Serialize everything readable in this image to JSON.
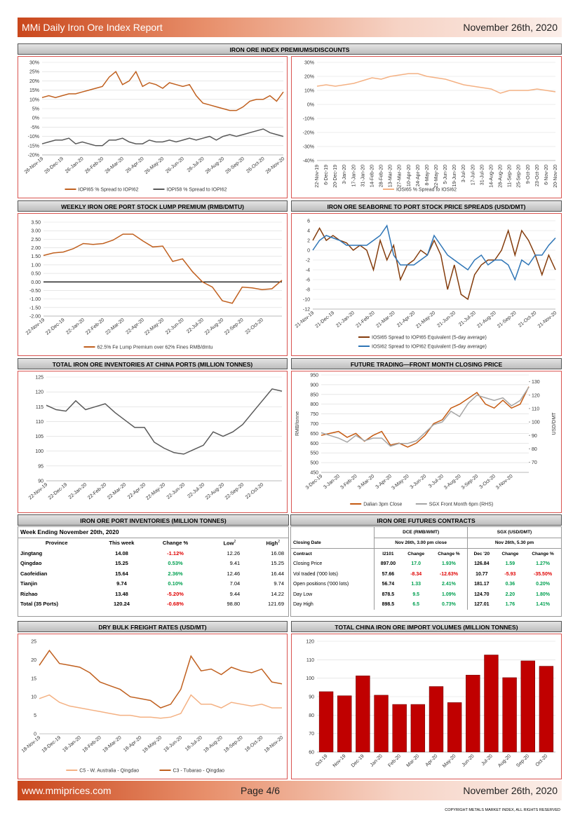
{
  "header": {
    "title": "MMi Daily Iron Ore Index Report",
    "date": "November 26th, 2020"
  },
  "footer": {
    "website": "www.mmiprices.com",
    "page": "Page 4/6",
    "date": "November 26th, 2020",
    "copyright": "COPYRIGHT METALS MARKET INDEX, ALL RIGHTS RESERVED"
  },
  "chart_data": [
    {
      "type": "line",
      "title": "IRON ORE INDEX PREMIUMS/DISCOUNTS",
      "grid": true,
      "legend": "bottom",
      "categories": [
        "26-Nov-19",
        null,
        null,
        "26-Dec-19",
        null,
        null,
        "26-Jan-20",
        null,
        null,
        "26-Feb-20",
        null,
        null,
        "26-Mar-20",
        null,
        null,
        "26-Apr-20",
        null,
        null,
        "26-May-20",
        null,
        null,
        "26-Jun-20",
        null,
        null,
        "26-Jul-20",
        null,
        null,
        "26-Aug-20",
        null,
        null,
        "26-Sep-20",
        null,
        null,
        "26-Oct-20",
        null,
        null,
        "26-Nov-20"
      ],
      "series": [
        {
          "name": "IOPI65 % Spread to IOPI62",
          "color": "#c0601f",
          "values": [
            11,
            12,
            11,
            12,
            13,
            13,
            14,
            15,
            16,
            17,
            22,
            25,
            18,
            20,
            25,
            17,
            19,
            18,
            16,
            19,
            18,
            17,
            18,
            12,
            8,
            7,
            6,
            5,
            4,
            4,
            6,
            9,
            10,
            10,
            12,
            9,
            14
          ]
        },
        {
          "name": "IOPI58 % Spread to IOPI62",
          "color": "#595959",
          "values": [
            -14,
            -13,
            -12,
            -12,
            -11,
            -14,
            -13,
            -14,
            -15,
            -15,
            -12,
            -12,
            -11,
            -13,
            -14,
            -14,
            -12,
            -13,
            -13,
            -12,
            -13,
            -12,
            -11,
            -12,
            -11,
            -10,
            -12,
            -10,
            -9,
            -10,
            -9,
            -8,
            -7,
            -6,
            -8,
            -9,
            -10
          ]
        }
      ],
      "ylim": [
        -20,
        30
      ],
      "yticks": [
        {
          "value": -20,
          "label": "-20%"
        },
        {
          "value": -15,
          "label": "-15%"
        },
        {
          "value": -10,
          "label": "-10%"
        },
        {
          "value": -5,
          "label": "-5%"
        },
        {
          "value": 0,
          "label": "0%"
        },
        {
          "value": 5,
          "label": "5%"
        },
        {
          "value": 10,
          "label": "10%"
        },
        {
          "value": 15,
          "label": "15%"
        },
        {
          "value": 20,
          "label": "20%"
        },
        {
          "value": 25,
          "label": "25%"
        },
        {
          "value": 30,
          "label": "30%"
        }
      ]
    },
    {
      "type": "line",
      "grid": true,
      "legend": "bottom",
      "categories": [
        "22-Nov-19",
        "6-Dec-19",
        "20-Dec-19",
        "3-Jan-20",
        "17-Jan-20",
        "31-Jan-20",
        "14-Feb-20",
        "28-Feb-20",
        "13-Mar-20",
        "27-Mar-20",
        "10-Apr-20",
        "24-Apr-20",
        "8-May-20",
        "22-May-20",
        "5-Jun-20",
        "19-Jun-20",
        "3-Jul-20",
        "17-Jul-20",
        "31-Jul-20",
        "14-Aug-20",
        "28-Aug-20",
        "11-Sep-20",
        "25-Sep-20",
        "9-Oct-20",
        "23-Oct-20",
        "6-Nov-20",
        "20-Nov-20"
      ],
      "series": [
        {
          "name": "IOSI65 % Spread to IOSI62",
          "color": "#f4b183",
          "values": [
            13,
            14,
            13,
            14,
            15,
            17,
            19,
            18,
            20,
            21,
            22,
            22,
            20,
            19,
            18,
            16,
            14,
            13,
            12,
            11,
            8,
            10,
            10,
            10,
            11,
            10,
            9
          ]
        }
      ],
      "ylim": [
        -40,
        30
      ],
      "yticks": [
        {
          "value": -40,
          "label": "-40%"
        },
        {
          "value": -30,
          "label": "-30%"
        },
        {
          "value": -20,
          "label": "-20%"
        },
        {
          "value": -10,
          "label": "-10%"
        },
        {
          "value": 0,
          "label": "0%"
        },
        {
          "value": 10,
          "label": "10%"
        },
        {
          "value": 20,
          "label": "20%"
        },
        {
          "value": 30,
          "label": "30%"
        }
      ]
    },
    {
      "type": "line",
      "title": "WEEKLY IRON ORE PORT STOCK LUMP PREMIUM (RMB/DMTU)",
      "grid": true,
      "zero_line": true,
      "legend": "bottom",
      "categories": [
        "22-Nov-19",
        null,
        "22-Dec-19",
        null,
        "22-Jan-20",
        null,
        "22-Feb-20",
        null,
        "22-Mar-20",
        null,
        "22-Apr-20",
        null,
        "22-May-20",
        null,
        "22-Jun-20",
        null,
        "22-Jul-20",
        null,
        "22-Aug-20",
        null,
        "22-Sep-20",
        null,
        "22-Oct-20",
        null,
        null
      ],
      "series": [
        {
          "name": "62.5% Fe Lump Premium over 62% Fines RMB/dmtu",
          "color": "#c0601f",
          "values": [
            1.55,
            1.7,
            1.75,
            1.95,
            2.25,
            2.2,
            2.25,
            2.45,
            2.8,
            2.8,
            2.4,
            2.05,
            2.1,
            1.2,
            1.35,
            0.6,
            0.0,
            -0.3,
            -1.1,
            -1.25,
            -0.3,
            -0.35,
            -0.45,
            -0.4,
            0.1
          ]
        }
      ],
      "ylim": [
        -2,
        3.5
      ],
      "yticks": [
        {
          "value": -2,
          "label": "-2.00"
        },
        {
          "value": -1.5,
          "label": "-1.50"
        },
        {
          "value": -1,
          "label": "-1.00"
        },
        {
          "value": -0.5,
          "label": "-0.50"
        },
        {
          "value": 0,
          "label": "0.00"
        },
        {
          "value": 0.5,
          "label": "0.50"
        },
        {
          "value": 1,
          "label": "1.00"
        },
        {
          "value": 1.5,
          "label": "1.50"
        },
        {
          "value": 2,
          "label": "2.00"
        },
        {
          "value": 2.5,
          "label": "2.50"
        },
        {
          "value": 3,
          "label": "3.00"
        },
        {
          "value": 3.5,
          "label": "3.50"
        }
      ]
    },
    {
      "type": "line",
      "title": "IRON ORE SEABORNE TO PORT STOCK PRICE SPREADS (USD/DMT)",
      "grid": true,
      "legend": "bottom",
      "categories": [
        "21-Nov-19",
        null,
        null,
        "21-Dec-19",
        null,
        null,
        "21-Jan-20",
        null,
        null,
        "21-Feb-20",
        null,
        null,
        "21-Mar-20",
        null,
        null,
        "21-Apr-20",
        null,
        null,
        "21-May-20",
        null,
        null,
        "21-Jun-20",
        null,
        null,
        "21-Jul-20",
        null,
        null,
        "21-Aug-20",
        null,
        null,
        "21-Sep-20",
        null,
        null,
        "21-Oct-20",
        null,
        null,
        "21-Nov-20"
      ],
      "series": [
        {
          "name": "IOSI65 Spread to IOPI65 Equivalent (5-day average)",
          "color": "#843c0c",
          "values": [
            2,
            4.5,
            2,
            3,
            2,
            1.5,
            0,
            1,
            0,
            -4,
            2,
            -2,
            1,
            -6,
            -3,
            -2,
            0,
            -1,
            2,
            -1,
            -8,
            -3,
            -9,
            -10,
            -5,
            -3,
            -2,
            -2,
            0,
            4,
            -1,
            4,
            2,
            -1,
            -5,
            -1,
            -4
          ]
        },
        {
          "name": "IOSI62 Spread to IOPI62 Equivalent (5-day average)",
          "color": "#2e75b6",
          "values": [
            0,
            2,
            3,
            2.5,
            2,
            1,
            1,
            1,
            1,
            2,
            3,
            5,
            -1,
            -3,
            -3,
            -3,
            -2,
            -1,
            3,
            1,
            -1,
            -2,
            -3,
            -4,
            -2,
            -1,
            -3,
            -2,
            -2,
            -3,
            -6,
            -2,
            -3,
            -1,
            -1,
            1,
            2.5
          ]
        }
      ],
      "ylim": [
        -12,
        6
      ],
      "yticks": [
        -12,
        -10,
        -8,
        -6,
        -4,
        -2,
        0,
        2,
        4,
        6
      ]
    },
    {
      "type": "line",
      "title": "TOTAL IRON ORE INVENTORIES AT CHINA PORTS (MILLION TONNES)",
      "grid": true,
      "categories": [
        "22-Nov-19",
        null,
        "22-Dec-19",
        null,
        "22-Jan-20",
        null,
        "22-Feb-20",
        null,
        "22-Mar-20",
        null,
        "22-Apr-20",
        null,
        "22-May-20",
        null,
        "22-Jun-20",
        null,
        "22-Jul-20",
        null,
        "22-Aug-20",
        null,
        "22-Sep-20",
        null,
        "22-Oct-20",
        null,
        null
      ],
      "series": [
        {
          "color": "#595959",
          "values": [
            115.5,
            114,
            113.5,
            117,
            114,
            115,
            116,
            113,
            110.5,
            108,
            108,
            103,
            101,
            99.5,
            99,
            100.5,
            102,
            106.5,
            105,
            106.5,
            109,
            113,
            117,
            121,
            120.24
          ]
        }
      ],
      "ylim": [
        90,
        125
      ],
      "yticks": [
        90,
        95,
        100,
        105,
        110,
        115,
        120,
        125
      ]
    },
    {
      "type": "line",
      "title": "FUTURE TRADING—FRONT MONTH CLOSING PRICE",
      "grid": true,
      "legend": "bottom",
      "ylabel": "RMB/tonne",
      "y2label": "USD/DMT",
      "categories": [
        "3-Dec-19",
        null,
        "3-Jan-20",
        null,
        "3-Feb-20",
        null,
        "3-Mar-20",
        null,
        "3-Apr-20",
        null,
        "3-May-20",
        null,
        "3-Jun-20",
        null,
        "3-Jul-20",
        null,
        "3-Aug-20",
        null,
        "3-Sep-20",
        null,
        "3-Oct-20",
        null,
        "3-Nov-20",
        null,
        null
      ],
      "series": [
        {
          "name": "Dalian 3pm Close",
          "color": "#c55a11",
          "values": [
            640,
            650,
            660,
            630,
            650,
            610,
            640,
            660,
            590,
            600,
            580,
            600,
            640,
            700,
            720,
            780,
            800,
            830,
            860,
            800,
            780,
            820,
            780,
            800,
            890
          ]
        },
        {
          "name": "SGX Front Month 6pm (RHS)",
          "color": "#a6a6a6",
          "axis": "y2",
          "values": [
            92,
            90,
            88,
            85,
            90,
            86,
            88,
            88,
            82,
            84,
            84,
            86,
            92,
            98,
            100,
            108,
            104,
            114,
            120,
            118,
            116,
            118,
            112,
            116,
            126
          ]
        }
      ],
      "ylim": [
        450,
        950
      ],
      "yticks": [
        450,
        500,
        550,
        600,
        650,
        700,
        750,
        800,
        850,
        900,
        950
      ],
      "y2lim": [
        62.5,
        135
      ],
      "y2ticks": [
        70,
        80,
        90,
        100,
        110,
        120,
        130
      ]
    },
    {
      "type": "line",
      "title": "DRY BULK FREIGHT RATES (USD/MT)",
      "grid": false,
      "legend": "bottom",
      "categories": [
        "18-Nov-19",
        null,
        "18-Dec-19",
        null,
        "18-Jan-20",
        null,
        "18-Feb-20",
        null,
        "18-Mar-20",
        null,
        "18-Apr-20",
        null,
        "18-May-20",
        null,
        "18-Jun-20",
        null,
        "18-Jul-20",
        null,
        "18-Aug-20",
        null,
        "18-Sep-20",
        null,
        "18-Oct-20",
        null,
        "18-Nov-20"
      ],
      "series": [
        {
          "name": "C5 - W. Australia - Qingdao",
          "color": "#f4b183",
          "values": [
            9.5,
            10.5,
            8.5,
            7.5,
            7,
            6.5,
            6,
            5.5,
            5,
            5,
            4.5,
            4.5,
            4.2,
            4.5,
            5.5,
            10.5,
            8,
            8,
            7,
            8.5,
            8,
            7.5,
            8,
            7,
            7
          ]
        },
        {
          "name": "C3 - Tubarao - Qingdao",
          "color": "#c0601f",
          "values": [
            18.5,
            22.5,
            19,
            18.5,
            18,
            16.5,
            14,
            13,
            12,
            10,
            9.5,
            9,
            7,
            8,
            12,
            21,
            17,
            17.5,
            16,
            18,
            17,
            16.5,
            17.5,
            14,
            13.5
          ]
        }
      ],
      "ylim": [
        0,
        25
      ],
      "yticks": [
        0,
        5,
        10,
        15,
        20,
        25
      ]
    },
    {
      "type": "bar",
      "title": "TOTAL CHINA IRON ORE IMPORT VOLUMES (MILLION TONNES)",
      "grid": true,
      "color": "#c00000",
      "categories": [
        "Oct-19",
        "Nov-19",
        "Dec-19",
        "Jan-20",
        "Feb-20",
        "Mar-20",
        "Apr-20",
        "May-20",
        "Jun-20",
        "Jul-20",
        "Aug-20",
        "Sep-20",
        "Oct-20"
      ],
      "values": [
        92.7,
        90.5,
        101.3,
        90.8,
        85.8,
        85.8,
        95.5,
        86.8,
        101.7,
        112.6,
        100.3,
        109.4,
        106.5
      ],
      "ylim": [
        60,
        120
      ],
      "yticks": [
        60,
        70,
        80,
        90,
        100,
        110,
        120
      ]
    }
  ],
  "port_inventories": {
    "title": "IRON ORE PORT INVENTORIES (MILLION TONNES)",
    "week": "Week Ending November 20th, 2020",
    "columns": [
      "Province",
      "This week",
      "Change %",
      "Low",
      "High"
    ],
    "low_note": "2",
    "high_note": "2",
    "rows": [
      [
        "Jingtang",
        "14.08",
        "-1.12%",
        "12.26",
        "16.08"
      ],
      [
        "Qingdao",
        "15.25",
        "0.53%",
        "9.41",
        "15.25"
      ],
      [
        "Caofeidian",
        "15.64",
        "2.36%",
        "12.46",
        "16.44"
      ],
      [
        "Tianjin",
        "9.74",
        "0.10%",
        "7.04",
        "9.74"
      ],
      [
        "Rizhao",
        "13.48",
        "-5.20%",
        "9.44",
        "14.22"
      ],
      [
        "Total (35 Ports)",
        "120.24",
        "-0.68%",
        "98.80",
        "121.69"
      ]
    ]
  },
  "futures_contracts": {
    "title": "IRON ORE FUTURES CONTRACTS",
    "groups": [
      "DCE (RMB/WMT)",
      "SGX (USD/DMT)"
    ],
    "date_label": "Closing Date",
    "dates": [
      "Nov 26th, 3.00 pm close",
      "Nov 26th, 5.30 pm"
    ],
    "columns": [
      "Contract",
      "I2101",
      "Change",
      "Change %",
      "Dec '20",
      "Change",
      "Change %"
    ],
    "rows": [
      [
        "Closing Price",
        "897.00",
        "17.0",
        "1.93%",
        "126.84",
        "1.59",
        "1.27%"
      ],
      [
        "Vol traded ('000 lots)",
        "57.66",
        "-8.34",
        "-12.63%",
        "10.77",
        "-5.93",
        "-35.50%"
      ],
      [
        "Open positions ('000 lots)",
        "56.74",
        "1.33",
        "2.41%",
        "181.17",
        "0.36",
        "0.20%"
      ],
      [
        "Day Low",
        "878.5",
        "9.5",
        "1.09%",
        "124.70",
        "2.20",
        "1.80%"
      ],
      [
        "Day High",
        "898.5",
        "6.5",
        "0.73%",
        "127.01",
        "1.76",
        "1.41%"
      ]
    ]
  }
}
